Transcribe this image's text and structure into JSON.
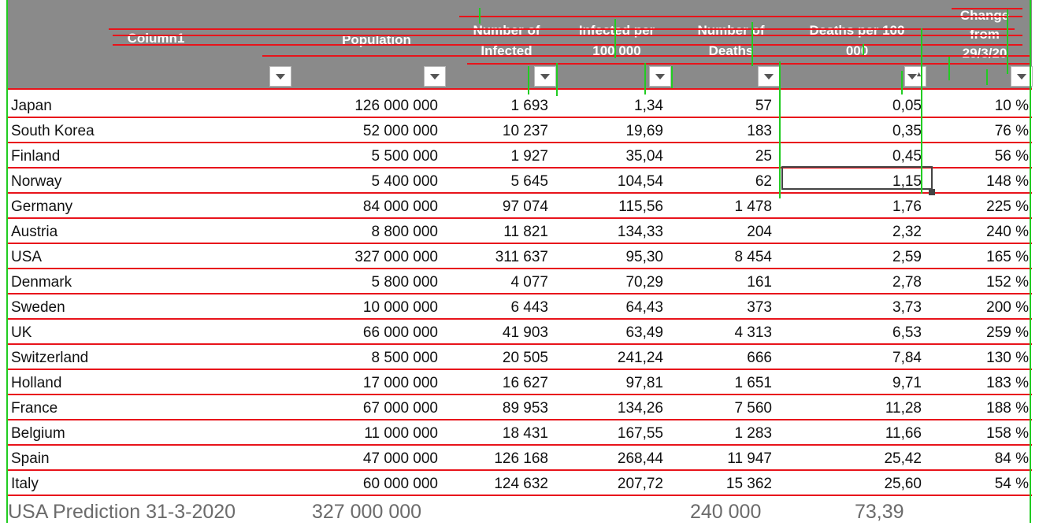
{
  "table": {
    "headers": [
      [
        "Column1"
      ],
      [
        "Population"
      ],
      [
        "Number of",
        "Infected"
      ],
      [
        "Infected per",
        "100 000"
      ],
      [
        "Number of",
        "Deaths"
      ],
      [
        "Deaths per 100",
        "000"
      ],
      [
        "Change",
        "from",
        "29/3/20"
      ]
    ],
    "rows": [
      [
        "Japan",
        "126 000 000",
        "1 693",
        "1,34",
        "57",
        "0,05",
        "10 %"
      ],
      [
        "South Korea",
        "52 000 000",
        "10 237",
        "19,69",
        "183",
        "0,35",
        "76 %"
      ],
      [
        "Finland",
        "5 500 000",
        "1 927",
        "35,04",
        "25",
        "0,45",
        "56 %"
      ],
      [
        "Norway",
        "5 400 000",
        "5 645",
        "104,54",
        "62",
        "1,15",
        "148 %"
      ],
      [
        "Germany",
        "84 000 000",
        "97 074",
        "115,56",
        "1 478",
        "1,76",
        "225 %"
      ],
      [
        "Austria",
        "8 800 000",
        "11 821",
        "134,33",
        "204",
        "2,32",
        "240 %"
      ],
      [
        "USA",
        "327 000 000",
        "311 637",
        "95,30",
        "8 454",
        "2,59",
        "165 %"
      ],
      [
        "Denmark",
        "5 800 000",
        "4 077",
        "70,29",
        "161",
        "2,78",
        "152 %"
      ],
      [
        "Sweden",
        "10 000 000",
        "6 443",
        "64,43",
        "373",
        "3,73",
        "200 %"
      ],
      [
        "UK",
        "66 000 000",
        "41 903",
        "63,49",
        "4 313",
        "6,53",
        "259 %"
      ],
      [
        "Switzerland",
        "8 500 000",
        "20 505",
        "241,24",
        "666",
        "7,84",
        "130 %"
      ],
      [
        "Holland",
        "17 000 000",
        "16 627",
        "97,81",
        "1 651",
        "9,71",
        "183 %"
      ],
      [
        "France",
        "67 000 000",
        "89 953",
        "134,26",
        "7 560",
        "11,28",
        "188 %"
      ],
      [
        "Belgium",
        "11 000 000",
        "18 431",
        "167,55",
        "1 283",
        "11,66",
        "158 %"
      ],
      [
        "Spain",
        "47 000 000",
        "126 168",
        "268,44",
        "11 947",
        "25,42",
        "84 %"
      ],
      [
        "Italy",
        "60 000 000",
        "124 632",
        "207,72",
        "15 362",
        "25,60",
        "54 %"
      ]
    ],
    "footer": {
      "label": "USA Prediction 31-3-2020",
      "population": "327 000 000",
      "deaths": "240 000",
      "deaths_per_100k": "73,39"
    }
  },
  "icons": {
    "filter": "filter-dropdown-icon",
    "sorted_filter": "sort-ascending-filter-icon"
  },
  "colors": {
    "header_bg": "#8a8a8a",
    "header_text": "#ffffff",
    "annotation_red": "#e8141b",
    "annotation_green": "#22cc22",
    "footer_text": "#6b6b6b"
  }
}
